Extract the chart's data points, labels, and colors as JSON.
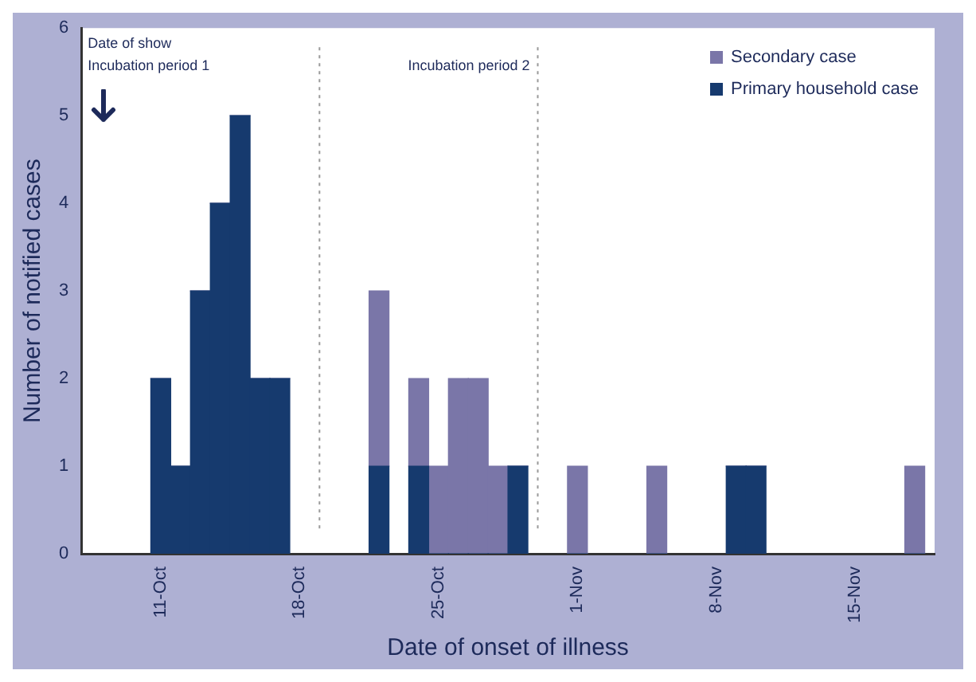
{
  "chart_data": {
    "type": "bar",
    "stacked": true,
    "xlabel": "Date of onset of illness",
    "ylabel": "Number of notified cases",
    "x": [
      "--10-11",
      "--10-12",
      "--10-13",
      "--10-14",
      "--10-15",
      "--10-16",
      "--10-17",
      "--10-22",
      "--10-24",
      "--10-25",
      "--10-26",
      "--10-27",
      "--10-28",
      "--10-29",
      "--11-01",
      "--11-05",
      "--11-09",
      "--11-10",
      "--11-18"
    ],
    "series": [
      {
        "name": "Primary household case",
        "color": "#163a6e",
        "values": [
          2,
          1,
          3,
          4,
          5,
          2,
          2,
          1,
          1,
          0,
          0,
          0,
          0,
          1,
          0,
          0,
          1,
          1,
          0
        ]
      },
      {
        "name": "Secondary case",
        "color": "#7a76a8",
        "values": [
          0,
          0,
          0,
          0,
          0,
          0,
          0,
          2,
          1,
          1,
          2,
          2,
          1,
          0,
          1,
          1,
          0,
          0,
          1
        ]
      }
    ],
    "xlim": [
      "--10-07",
      "--11-19"
    ],
    "xticks": [
      {
        "value": "--10-11",
        "label": "11-Oct"
      },
      {
        "value": "--10-18",
        "label": "18-Oct"
      },
      {
        "value": "--10-25",
        "label": "25-Oct"
      },
      {
        "value": "--11-01",
        "label": "1-Nov"
      },
      {
        "value": "--11-08",
        "label": "8-Nov"
      },
      {
        "value": "--11-15",
        "label": "15-Nov"
      }
    ],
    "ylim": [
      0,
      6
    ],
    "yticks": [
      0,
      1,
      2,
      3,
      4,
      5,
      6
    ],
    "ref_lines": [
      {
        "axis": "x",
        "value": "--10-19",
        "line_style": "dotted",
        "color": "#999999"
      },
      {
        "axis": "x",
        "value": "--10-30",
        "label": "Incubation period 2",
        "line_style": "dotted",
        "color": "#999999"
      }
    ],
    "annotations": [
      "Date of show",
      "Incubation period 1"
    ],
    "grid": false,
    "legend": "top right"
  }
}
